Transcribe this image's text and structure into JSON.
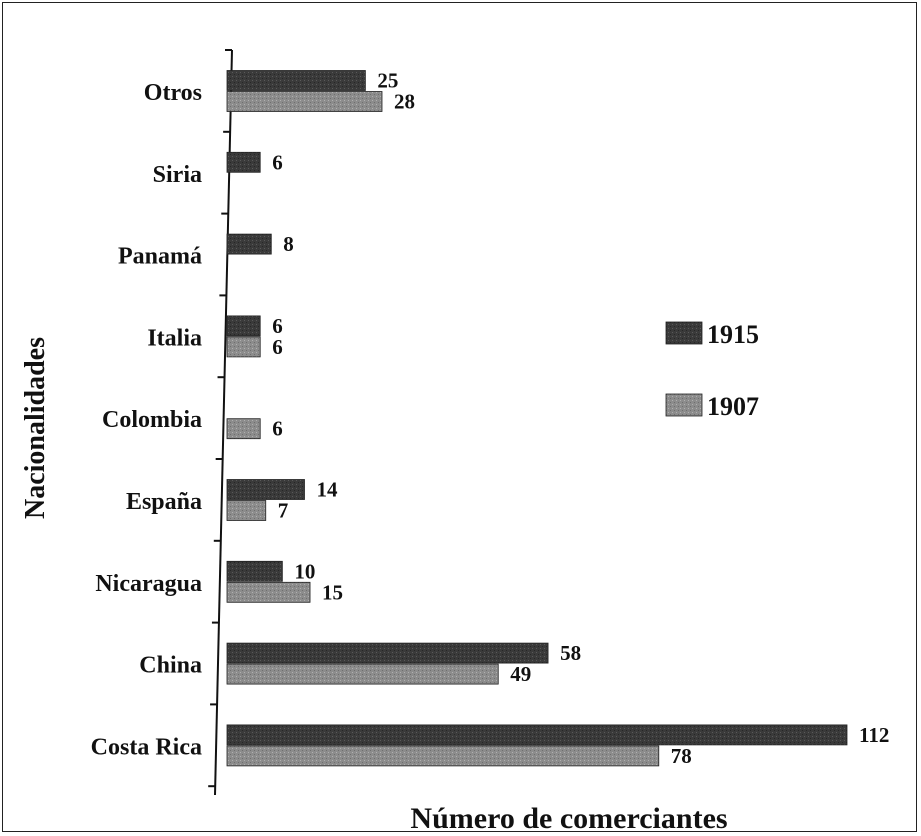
{
  "chart_data": {
    "type": "bar",
    "orientation": "horizontal",
    "categories": [
      "Otros",
      "Siria",
      "Panamá",
      "Italia",
      "Colombia",
      "España",
      "Nicaragua",
      "China",
      "Costa Rica"
    ],
    "series": [
      {
        "name": "1915",
        "values": [
          25,
          6,
          8,
          6,
          null,
          14,
          10,
          58,
          112
        ],
        "color": "#3a3a3a"
      },
      {
        "name": "1907",
        "values": [
          28,
          null,
          null,
          6,
          6,
          7,
          15,
          49,
          78
        ],
        "color": "#8a8a8a"
      }
    ],
    "title": "",
    "xlabel": "Número de comerciantes",
    "ylabel": "Nacionalidades",
    "xlim": [
      0,
      112
    ],
    "grid": false,
    "legend_position": "right"
  }
}
